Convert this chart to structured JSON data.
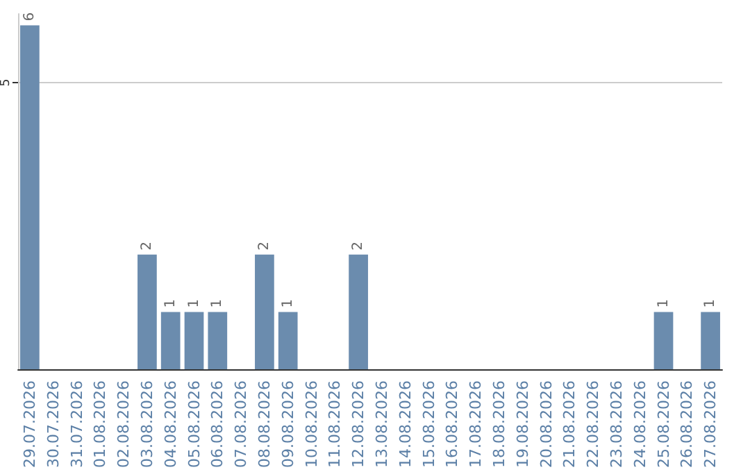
{
  "chart_data": {
    "type": "bar",
    "categories": [
      "29.07.2026",
      "30.07.2026",
      "31.07.2026",
      "01.08.2026",
      "02.08.2026",
      "03.08.2026",
      "04.08.2026",
      "05.08.2026",
      "06.08.2026",
      "07.08.2026",
      "08.08.2026",
      "09.08.2026",
      "10.08.2026",
      "11.08.2026",
      "12.08.2026",
      "13.08.2026",
      "14.08.2026",
      "15.08.2026",
      "16.08.2026",
      "17.08.2026",
      "18.08.2026",
      "19.08.2026",
      "20.08.2026",
      "21.08.2026",
      "22.08.2026",
      "23.08.2026",
      "24.08.2026",
      "25.08.2026",
      "26.08.2026",
      "27.08.2026"
    ],
    "values": [
      6,
      0,
      0,
      0,
      0,
      2,
      1,
      1,
      1,
      0,
      2,
      1,
      0,
      0,
      2,
      0,
      0,
      0,
      0,
      0,
      0,
      0,
      0,
      0,
      0,
      0,
      0,
      1,
      0,
      1
    ],
    "value_labels": [
      "6",
      null,
      null,
      null,
      null,
      "2",
      "1",
      "1",
      "1",
      null,
      "2",
      "1",
      null,
      null,
      "2",
      null,
      null,
      null,
      null,
      null,
      null,
      null,
      null,
      null,
      null,
      null,
      null,
      "1",
      null,
      "1"
    ],
    "color": "#6b8cae",
    "ylim": [
      0,
      6.2
    ],
    "yticks": [
      5
    ],
    "grid": "y"
  }
}
